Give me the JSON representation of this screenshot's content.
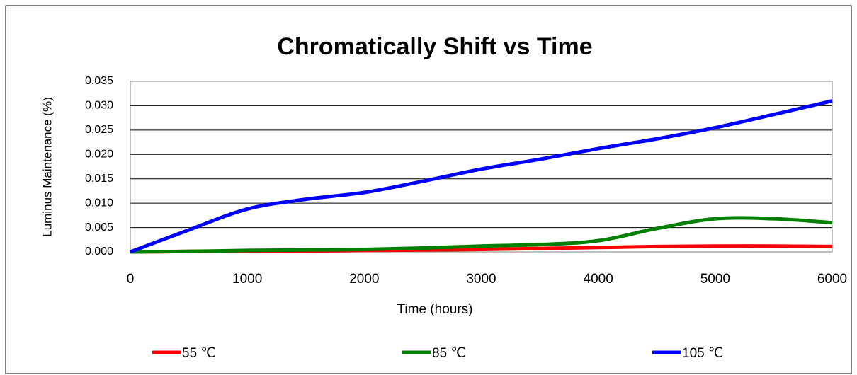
{
  "chart_data": {
    "type": "line",
    "title": "Chromatically Shift vs Time",
    "xlabel": "Time (hours)",
    "ylabel": "Luminus Maintenance (%)",
    "x": [
      0,
      500,
      1000,
      1500,
      2000,
      2500,
      3000,
      3500,
      4000,
      4500,
      5000,
      5500,
      6000
    ],
    "series": [
      {
        "name": "55 ℃",
        "color": "#ff0000",
        "values": [
          0,
          0.0001,
          0.0002,
          0.0002,
          0.0003,
          0.0004,
          0.0005,
          0.0007,
          0.0009,
          0.0011,
          0.0012,
          0.0012,
          0.0011
        ]
      },
      {
        "name": "85 ℃",
        "color": "#008000",
        "values": [
          0,
          0.0001,
          0.0003,
          0.0004,
          0.0005,
          0.0008,
          0.0012,
          0.0015,
          0.0023,
          0.0048,
          0.0068,
          0.0068,
          0.006
        ]
      },
      {
        "name": "105 ℃",
        "color": "#0000ff",
        "values": [
          0,
          0.0045,
          0.0088,
          0.0108,
          0.0122,
          0.0145,
          0.017,
          0.019,
          0.0212,
          0.0232,
          0.0255,
          0.0282,
          0.031
        ]
      }
    ],
    "xlim": [
      0,
      6000
    ],
    "xticks": [
      0,
      1000,
      2000,
      3000,
      4000,
      5000,
      6000
    ],
    "ylim": [
      0,
      0.035
    ],
    "yticks": [
      {
        "value": 0,
        "label": "0.000"
      },
      {
        "value": 0.005,
        "label": "0.005"
      },
      {
        "value": 0.01,
        "label": "0.010"
      },
      {
        "value": 0.015,
        "label": "0.015"
      },
      {
        "value": 0.02,
        "label": "0.020"
      },
      {
        "value": 0.025,
        "label": "0.025"
      },
      {
        "value": 0.03,
        "label": "0.030"
      },
      {
        "value": 0.035,
        "label": "0.035"
      }
    ],
    "grid": true,
    "legend": "bottom"
  }
}
